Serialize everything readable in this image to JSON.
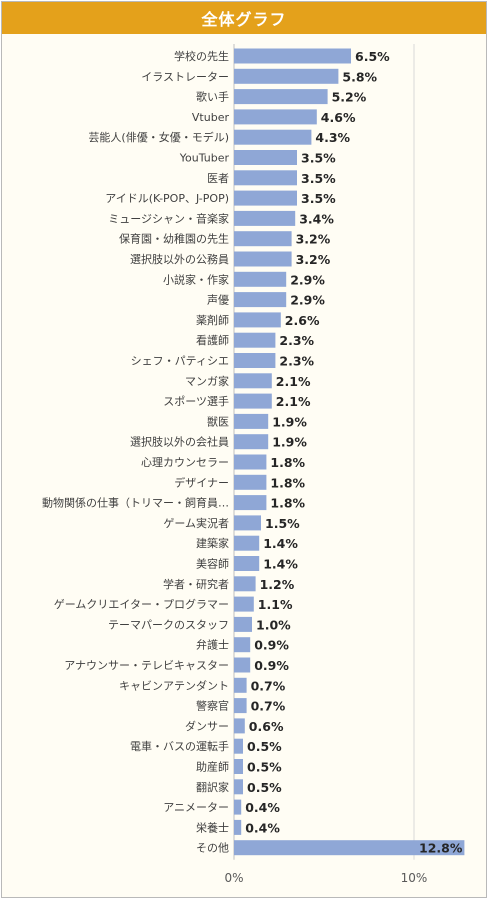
{
  "chart_data": {
    "type": "bar",
    "orientation": "horizontal",
    "title": "全体グラフ",
    "categories": [
      "学校の先生",
      "イラストレーター",
      "歌い手",
      "Vtuber",
      "芸能人(俳優・女優・モデル)",
      "YouTuber",
      "医者",
      "アイドル(K-POP、J-POP)",
      "ミュージシャン・音楽家",
      "保育園・幼稚園の先生",
      "選択肢以外の公務員",
      "小説家・作家",
      "声優",
      "薬剤師",
      "看護師",
      "シェフ・パティシエ",
      "マンガ家",
      "スポーツ選手",
      "獣医",
      "選択肢以外の会社員",
      "心理カウンセラー",
      "デザイナー",
      "動物関係の仕事（トリマー・飼育員…",
      "ゲーム実況者",
      "建築家",
      "美容師",
      "学者・研究者",
      "ゲームクリエイター・プログラマー",
      "テーマパークのスタッフ",
      "弁護士",
      "アナウンサー・テレビキャスター",
      "キャビンアテンダント",
      "警察官",
      "ダンサー",
      "電車・バスの運転手",
      "助産師",
      "翻訳家",
      "アニメーター",
      "栄養士",
      "その他"
    ],
    "values": [
      6.5,
      5.8,
      5.2,
      4.6,
      4.3,
      3.5,
      3.5,
      3.5,
      3.4,
      3.2,
      3.2,
      2.9,
      2.9,
      2.6,
      2.3,
      2.3,
      2.1,
      2.1,
      1.9,
      1.9,
      1.8,
      1.8,
      1.8,
      1.5,
      1.4,
      1.4,
      1.2,
      1.1,
      1.0,
      0.9,
      0.9,
      0.7,
      0.7,
      0.6,
      0.5,
      0.5,
      0.5,
      0.4,
      0.4,
      12.8
    ],
    "value_labels": [
      "6.5%",
      "5.8%",
      "5.2%",
      "4.6%",
      "4.3%",
      "3.5%",
      "3.5%",
      "3.5%",
      "3.4%",
      "3.2%",
      "3.2%",
      "2.9%",
      "2.9%",
      "2.6%",
      "2.3%",
      "2.3%",
      "2.1%",
      "2.1%",
      "1.9%",
      "1.9%",
      "1.8%",
      "1.8%",
      "1.8%",
      "1.5%",
      "1.4%",
      "1.4%",
      "1.2%",
      "1.1%",
      "1.0%",
      "0.9%",
      "0.9%",
      "0.7%",
      "0.7%",
      "0.6%",
      "0.5%",
      "0.5%",
      "0.5%",
      "0.4%",
      "0.4%",
      "12.8%"
    ],
    "xlim": [
      0,
      13
    ],
    "xticks": [
      0,
      10
    ],
    "xtick_labels": [
      "0%",
      "10%"
    ],
    "grid": true,
    "colors": {
      "bar": "#8fa7d6",
      "title_bg": "#e4a11b",
      "plot_bg": "#fffdf4",
      "grid": "#d9d9d9"
    }
  }
}
